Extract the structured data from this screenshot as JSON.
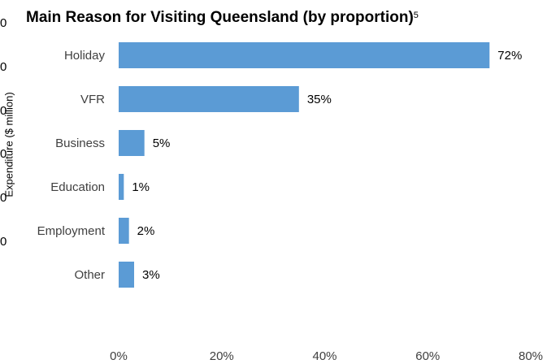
{
  "page_title": "Main Reason for Visiting Queensland (by proportion)",
  "chart_data": {
    "type": "bar",
    "orientation": "horizontal",
    "title": "Main Reason for Visiting Queensland (by proportion)",
    "title_superscript": "5",
    "categories": [
      "Holiday",
      "VFR",
      "Business",
      "Education",
      "Employment",
      "Other"
    ],
    "values": [
      72,
      35,
      5,
      1,
      2,
      3
    ],
    "value_labels": [
      "72%",
      "35%",
      "5%",
      "1%",
      "2%",
      "3%"
    ],
    "xlim": [
      0,
      80
    ],
    "x_ticks": [
      0,
      20,
      40,
      60,
      80
    ],
    "x_tick_labels": [
      "0%",
      "20%",
      "40%",
      "60%",
      "80%"
    ],
    "xlabel": "",
    "ylabel": "",
    "grid": false,
    "legend": "none",
    "bar_color": "#5B9BD5"
  },
  "background_fragment": {
    "axis_label": "Expenditure ($ million)",
    "stray_tick_glyphs": [
      "0",
      "0",
      "0",
      "0",
      "0",
      "0"
    ]
  }
}
